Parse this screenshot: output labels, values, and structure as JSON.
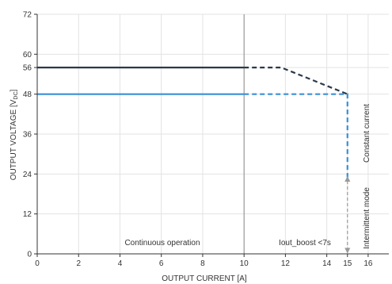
{
  "chart_data": {
    "type": "line",
    "xlabel": "OUTPUT CURRENT [A]",
    "ylabel_prefix": "OUTPUT VOLTAGE [V",
    "ylabel_sub": "DC",
    "ylabel_suffix": "]",
    "xlim": [
      0,
      17
    ],
    "ylim": [
      0,
      72
    ],
    "x_ticks": [
      0,
      2,
      4,
      6,
      8,
      10,
      12,
      14,
      15,
      16
    ],
    "y_ticks": [
      0,
      12,
      24,
      36,
      48,
      56,
      60,
      72
    ],
    "grid": true,
    "colors": {
      "series_56v": "#2b3a4a",
      "series_48v": "#3a8fd6",
      "intermittent": "#9a9a9a",
      "divider": "#8a8a8a",
      "axis": "#333333"
    },
    "series": [
      {
        "solid": [
          [
            0,
            56
          ],
          [
            10,
            56
          ]
        ],
        "dashed": [
          [
            10,
            56
          ],
          [
            11.8,
            56
          ],
          [
            15,
            48
          ]
        ]
      },
      {
        "solid": [
          [
            0,
            48
          ],
          [
            10,
            48
          ]
        ],
        "dashed": [
          [
            10,
            48
          ],
          [
            15,
            48
          ],
          [
            15,
            23
          ]
        ]
      }
    ],
    "intermittent_arrow": {
      "x": 15,
      "y_from": 0,
      "y_to": 23
    },
    "divider_x": 10,
    "annotations": {
      "continuous": "Continuous operation",
      "boost": "Iout_boost <7s",
      "constant_current": "Constant current",
      "intermittent": "Intermittent mode"
    }
  }
}
